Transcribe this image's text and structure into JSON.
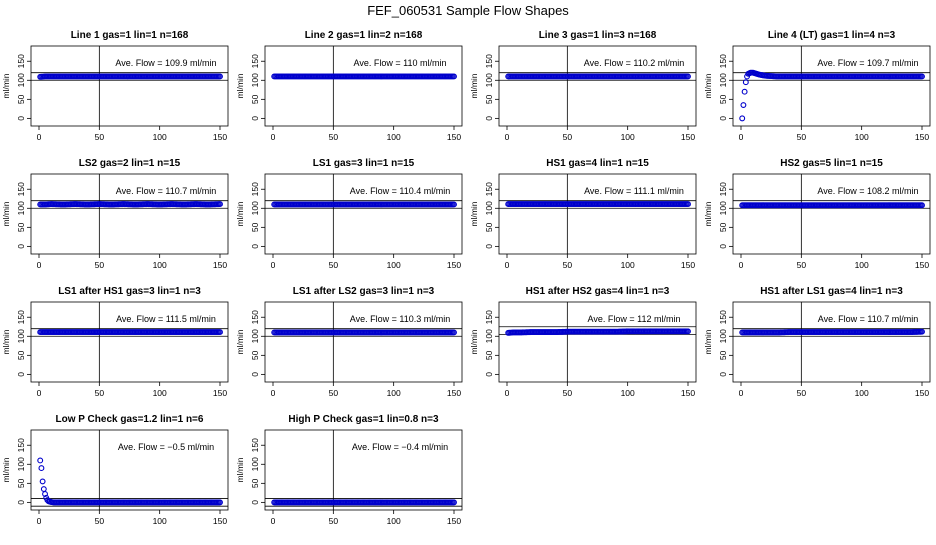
{
  "figure": {
    "title": "FEF_060531  Sample Flow Shapes"
  },
  "chart_data": [
    {
      "type": "scatter",
      "title": "Line 1 gas=1 lin=1 n=168",
      "ylabel": "ml/min",
      "xlim": [
        0,
        150
      ],
      "ylim": [
        -20,
        190
      ],
      "xticks": [
        0,
        50,
        100,
        150
      ],
      "yticks": [
        0,
        50,
        100,
        150
      ],
      "vline": 50,
      "hlines": [
        100,
        120
      ],
      "avg_text": "Ave. Flow =  109.9  ml/min",
      "points": [
        [
          1,
          109
        ],
        [
          5,
          110
        ],
        [
          10,
          110
        ],
        [
          20,
          110
        ],
        [
          30,
          110
        ],
        [
          40,
          110
        ],
        [
          50,
          110
        ],
        [
          60,
          110
        ],
        [
          70,
          110
        ],
        [
          80,
          110
        ],
        [
          90,
          110
        ],
        [
          100,
          110
        ],
        [
          110,
          110
        ],
        [
          120,
          110
        ],
        [
          130,
          110
        ],
        [
          140,
          110
        ],
        [
          150,
          110
        ]
      ]
    },
    {
      "type": "scatter",
      "title": "Line 2 gas=1 lin=2 n=168",
      "ylabel": "ml/min",
      "xlim": [
        0,
        150
      ],
      "ylim": [
        -20,
        190
      ],
      "xticks": [
        0,
        50,
        100,
        150
      ],
      "yticks": [
        0,
        50,
        100,
        150
      ],
      "vline": 50,
      "hlines": [],
      "avg_text": "Ave. Flow =  110  ml/min",
      "points": [
        [
          1,
          110
        ],
        [
          5,
          110
        ],
        [
          10,
          110
        ],
        [
          20,
          110
        ],
        [
          30,
          110
        ],
        [
          40,
          110
        ],
        [
          50,
          110
        ],
        [
          60,
          110
        ],
        [
          70,
          110
        ],
        [
          80,
          110
        ],
        [
          90,
          110
        ],
        [
          100,
          110
        ],
        [
          110,
          110
        ],
        [
          120,
          110
        ],
        [
          130,
          110
        ],
        [
          140,
          110
        ],
        [
          150,
          110
        ]
      ]
    },
    {
      "type": "scatter",
      "title": "Line 3 gas=1 lin=3 n=168",
      "ylabel": "ml/min",
      "xlim": [
        0,
        150
      ],
      "ylim": [
        -20,
        190
      ],
      "xticks": [
        0,
        50,
        100,
        150
      ],
      "yticks": [
        0,
        50,
        100,
        150
      ],
      "vline": 50,
      "hlines": [
        100,
        120
      ],
      "avg_text": "Ave. Flow =  110.2  ml/min",
      "points": [
        [
          1,
          110
        ],
        [
          5,
          110
        ],
        [
          10,
          110
        ],
        [
          20,
          110
        ],
        [
          30,
          110
        ],
        [
          40,
          110
        ],
        [
          50,
          110
        ],
        [
          60,
          110
        ],
        [
          70,
          110
        ],
        [
          80,
          110
        ],
        [
          90,
          110
        ],
        [
          100,
          110
        ],
        [
          110,
          110
        ],
        [
          120,
          110
        ],
        [
          130,
          110
        ],
        [
          140,
          110
        ],
        [
          150,
          110
        ]
      ]
    },
    {
      "type": "scatter",
      "title": "Line 4 (LT) gas=1 lin=4 n=3",
      "ylabel": "ml/min",
      "xlim": [
        0,
        150
      ],
      "ylim": [
        -20,
        190
      ],
      "xticks": [
        0,
        50,
        100,
        150
      ],
      "yticks": [
        0,
        50,
        100,
        150
      ],
      "vline": 50,
      "hlines": [
        100,
        120
      ],
      "avg_text": "Ave. Flow =  109.7  ml/min",
      "points": [
        [
          1,
          0
        ],
        [
          2,
          35
        ],
        [
          3,
          70
        ],
        [
          4,
          95
        ],
        [
          5,
          110
        ],
        [
          6,
          117
        ],
        [
          8,
          120
        ],
        [
          10,
          120
        ],
        [
          12,
          118
        ],
        [
          15,
          115
        ],
        [
          20,
          112
        ],
        [
          30,
          110
        ],
        [
          40,
          110
        ],
        [
          50,
          110
        ],
        [
          60,
          110
        ],
        [
          80,
          110
        ],
        [
          100,
          110
        ],
        [
          120,
          110
        ],
        [
          140,
          110
        ],
        [
          150,
          110
        ]
      ]
    },
    {
      "type": "scatter",
      "title": "LS2 gas=2 lin=1 n=15",
      "ylabel": "ml/min",
      "xlim": [
        0,
        150
      ],
      "ylim": [
        -20,
        190
      ],
      "xticks": [
        0,
        50,
        100,
        150
      ],
      "yticks": [
        0,
        50,
        100,
        150
      ],
      "vline": 50,
      "hlines": [
        100,
        120
      ],
      "avg_text": "Ave. Flow =  110.7  ml/min",
      "points": [
        [
          1,
          110
        ],
        [
          5,
          110
        ],
        [
          10,
          111
        ],
        [
          20,
          110
        ],
        [
          30,
          111
        ],
        [
          40,
          110
        ],
        [
          50,
          111
        ],
        [
          60,
          110
        ],
        [
          70,
          111
        ],
        [
          80,
          110
        ],
        [
          90,
          111
        ],
        [
          100,
          110
        ],
        [
          110,
          111
        ],
        [
          120,
          110
        ],
        [
          130,
          111
        ],
        [
          140,
          110
        ],
        [
          150,
          111
        ]
      ]
    },
    {
      "type": "scatter",
      "title": "LS1 gas=3 lin=1 n=15",
      "ylabel": "ml/min",
      "xlim": [
        0,
        150
      ],
      "ylim": [
        -20,
        190
      ],
      "xticks": [
        0,
        50,
        100,
        150
      ],
      "yticks": [
        0,
        50,
        100,
        150
      ],
      "vline": 50,
      "hlines": [
        100,
        120
      ],
      "avg_text": "Ave. Flow =  110.4  ml/min",
      "points": [
        [
          1,
          110
        ],
        [
          5,
          110
        ],
        [
          10,
          110
        ],
        [
          20,
          110
        ],
        [
          30,
          110
        ],
        [
          40,
          110
        ],
        [
          50,
          110
        ],
        [
          60,
          110
        ],
        [
          70,
          110
        ],
        [
          80,
          110
        ],
        [
          90,
          110
        ],
        [
          100,
          110
        ],
        [
          110,
          110
        ],
        [
          120,
          110
        ],
        [
          130,
          110
        ],
        [
          140,
          110
        ],
        [
          150,
          110
        ]
      ]
    },
    {
      "type": "scatter",
      "title": "HS1 gas=4 lin=1 n=15",
      "ylabel": "ml/min",
      "xlim": [
        0,
        150
      ],
      "ylim": [
        -20,
        190
      ],
      "xticks": [
        0,
        50,
        100,
        150
      ],
      "yticks": [
        0,
        50,
        100,
        150
      ],
      "vline": 50,
      "hlines": [
        100,
        120
      ],
      "avg_text": "Ave. Flow =  111.1  ml/min",
      "points": [
        [
          1,
          111
        ],
        [
          5,
          111
        ],
        [
          10,
          111
        ],
        [
          20,
          111
        ],
        [
          30,
          111
        ],
        [
          40,
          111
        ],
        [
          50,
          111
        ],
        [
          60,
          111
        ],
        [
          70,
          111
        ],
        [
          80,
          111
        ],
        [
          90,
          111
        ],
        [
          100,
          111
        ],
        [
          110,
          111
        ],
        [
          120,
          111
        ],
        [
          130,
          111
        ],
        [
          140,
          111
        ],
        [
          150,
          111
        ]
      ]
    },
    {
      "type": "scatter",
      "title": "HS2 gas=5 lin=1 n=15",
      "ylabel": "ml/min",
      "xlim": [
        0,
        150
      ],
      "ylim": [
        -20,
        190
      ],
      "xticks": [
        0,
        50,
        100,
        150
      ],
      "yticks": [
        0,
        50,
        100,
        150
      ],
      "vline": 50,
      "hlines": [
        100,
        120
      ],
      "avg_text": "Ave. Flow =  108.2  ml/min",
      "points": [
        [
          1,
          108
        ],
        [
          5,
          108
        ],
        [
          10,
          108
        ],
        [
          20,
          108
        ],
        [
          30,
          108
        ],
        [
          40,
          108
        ],
        [
          50,
          108
        ],
        [
          60,
          108
        ],
        [
          70,
          108
        ],
        [
          80,
          108
        ],
        [
          90,
          108
        ],
        [
          100,
          108
        ],
        [
          110,
          108
        ],
        [
          120,
          108
        ],
        [
          130,
          108
        ],
        [
          140,
          108
        ],
        [
          150,
          108
        ]
      ]
    },
    {
      "type": "scatter",
      "title": "LS1 after HS1 gas=3 lin=1 n=3",
      "ylabel": "ml/min",
      "xlim": [
        0,
        150
      ],
      "ylim": [
        -20,
        190
      ],
      "xticks": [
        0,
        50,
        100,
        150
      ],
      "yticks": [
        0,
        50,
        100,
        150
      ],
      "vline": 50,
      "hlines": [
        100,
        120
      ],
      "avg_text": "Ave. Flow =  111.5  ml/min",
      "points": [
        [
          1,
          111
        ],
        [
          5,
          111
        ],
        [
          10,
          111
        ],
        [
          20,
          111
        ],
        [
          30,
          111
        ],
        [
          40,
          111
        ],
        [
          50,
          111
        ],
        [
          60,
          111
        ],
        [
          70,
          111
        ],
        [
          80,
          111
        ],
        [
          90,
          111
        ],
        [
          100,
          111
        ],
        [
          110,
          111
        ],
        [
          120,
          111
        ],
        [
          130,
          111
        ],
        [
          140,
          111
        ],
        [
          150,
          111
        ]
      ]
    },
    {
      "type": "scatter",
      "title": "LS1 after LS2 gas=3 lin=1 n=3",
      "ylabel": "ml/min",
      "xlim": [
        0,
        150
      ],
      "ylim": [
        -20,
        190
      ],
      "xticks": [
        0,
        50,
        100,
        150
      ],
      "yticks": [
        0,
        50,
        100,
        150
      ],
      "vline": 50,
      "hlines": [
        100,
        120
      ],
      "avg_text": "Ave. Flow =  110.3  ml/min",
      "points": [
        [
          1,
          110
        ],
        [
          5,
          110
        ],
        [
          10,
          110
        ],
        [
          20,
          110
        ],
        [
          30,
          110
        ],
        [
          40,
          110
        ],
        [
          50,
          110
        ],
        [
          60,
          110
        ],
        [
          70,
          110
        ],
        [
          80,
          110
        ],
        [
          90,
          110
        ],
        [
          100,
          110
        ],
        [
          110,
          110
        ],
        [
          120,
          110
        ],
        [
          130,
          110
        ],
        [
          140,
          110
        ],
        [
          150,
          110
        ]
      ]
    },
    {
      "type": "scatter",
      "title": "HS1 after HS2 gas=4 lin=1 n=3",
      "ylabel": "ml/min",
      "xlim": [
        0,
        150
      ],
      "ylim": [
        -20,
        190
      ],
      "xticks": [
        0,
        50,
        100,
        150
      ],
      "yticks": [
        0,
        50,
        100,
        150
      ],
      "vline": 50,
      "hlines": [
        105,
        125
      ],
      "avg_text": "Ave. Flow =  112  ml/min",
      "points": [
        [
          1,
          109
        ],
        [
          5,
          110
        ],
        [
          10,
          110
        ],
        [
          20,
          111
        ],
        [
          30,
          111
        ],
        [
          40,
          111
        ],
        [
          50,
          112
        ],
        [
          60,
          112
        ],
        [
          70,
          112
        ],
        [
          80,
          112
        ],
        [
          90,
          112
        ],
        [
          100,
          113
        ],
        [
          110,
          113
        ],
        [
          120,
          113
        ],
        [
          130,
          113
        ],
        [
          140,
          113
        ],
        [
          150,
          113
        ]
      ]
    },
    {
      "type": "scatter",
      "title": "HS1 after LS1 gas=4 lin=1 n=3",
      "ylabel": "ml/min",
      "xlim": [
        0,
        150
      ],
      "ylim": [
        -20,
        190
      ],
      "xticks": [
        0,
        50,
        100,
        150
      ],
      "yticks": [
        0,
        50,
        100,
        150
      ],
      "vline": 50,
      "hlines": [
        100,
        120
      ],
      "avg_text": "Ave. Flow =  110.7  ml/min",
      "points": [
        [
          1,
          110
        ],
        [
          5,
          110
        ],
        [
          10,
          110
        ],
        [
          20,
          110
        ],
        [
          30,
          110
        ],
        [
          40,
          111
        ],
        [
          50,
          111
        ],
        [
          60,
          111
        ],
        [
          70,
          111
        ],
        [
          80,
          111
        ],
        [
          90,
          111
        ],
        [
          100,
          111
        ],
        [
          110,
          111
        ],
        [
          120,
          111
        ],
        [
          130,
          111
        ],
        [
          140,
          111
        ],
        [
          150,
          112
        ]
      ]
    },
    {
      "type": "scatter",
      "title": "Low P Check gas=1.2 lin=1 n=6",
      "ylabel": "ml/min",
      "xlim": [
        0,
        150
      ],
      "ylim": [
        -20,
        190
      ],
      "xticks": [
        0,
        50,
        100,
        150
      ],
      "yticks": [
        0,
        50,
        100,
        150
      ],
      "vline": 50,
      "hlines": [
        -10,
        10
      ],
      "avg_text": "Ave. Flow =  −0.5  ml/min",
      "points": [
        [
          1,
          110
        ],
        [
          2,
          90
        ],
        [
          3,
          55
        ],
        [
          4,
          35
        ],
        [
          5,
          22
        ],
        [
          6,
          12
        ],
        [
          7,
          6
        ],
        [
          8,
          3
        ],
        [
          10,
          1
        ],
        [
          12,
          0
        ],
        [
          15,
          0
        ],
        [
          20,
          0
        ],
        [
          30,
          0
        ],
        [
          40,
          0
        ],
        [
          50,
          0
        ],
        [
          60,
          0
        ],
        [
          80,
          0
        ],
        [
          100,
          0
        ],
        [
          120,
          0
        ],
        [
          140,
          0
        ],
        [
          150,
          0
        ]
      ]
    },
    {
      "type": "scatter",
      "title": "High P Check gas=1 lin=0.8 n=3",
      "ylabel": "ml/min",
      "xlim": [
        0,
        150
      ],
      "ylim": [
        -20,
        190
      ],
      "xticks": [
        0,
        50,
        100,
        150
      ],
      "yticks": [
        0,
        50,
        100,
        150
      ],
      "vline": 50,
      "hlines": [
        -10,
        10
      ],
      "avg_text": "Ave. Flow =  −0.4  ml/min",
      "points": [
        [
          1,
          0
        ],
        [
          5,
          0
        ],
        [
          10,
          0
        ],
        [
          20,
          0
        ],
        [
          30,
          0
        ],
        [
          40,
          0
        ],
        [
          50,
          0
        ],
        [
          60,
          0
        ],
        [
          70,
          0
        ],
        [
          80,
          0
        ],
        [
          90,
          0
        ],
        [
          100,
          0
        ],
        [
          110,
          0
        ],
        [
          120,
          0
        ],
        [
          130,
          0
        ],
        [
          140,
          0
        ],
        [
          150,
          0
        ]
      ]
    }
  ],
  "colors": {
    "points": "#0000cc",
    "axis": "#000000"
  }
}
